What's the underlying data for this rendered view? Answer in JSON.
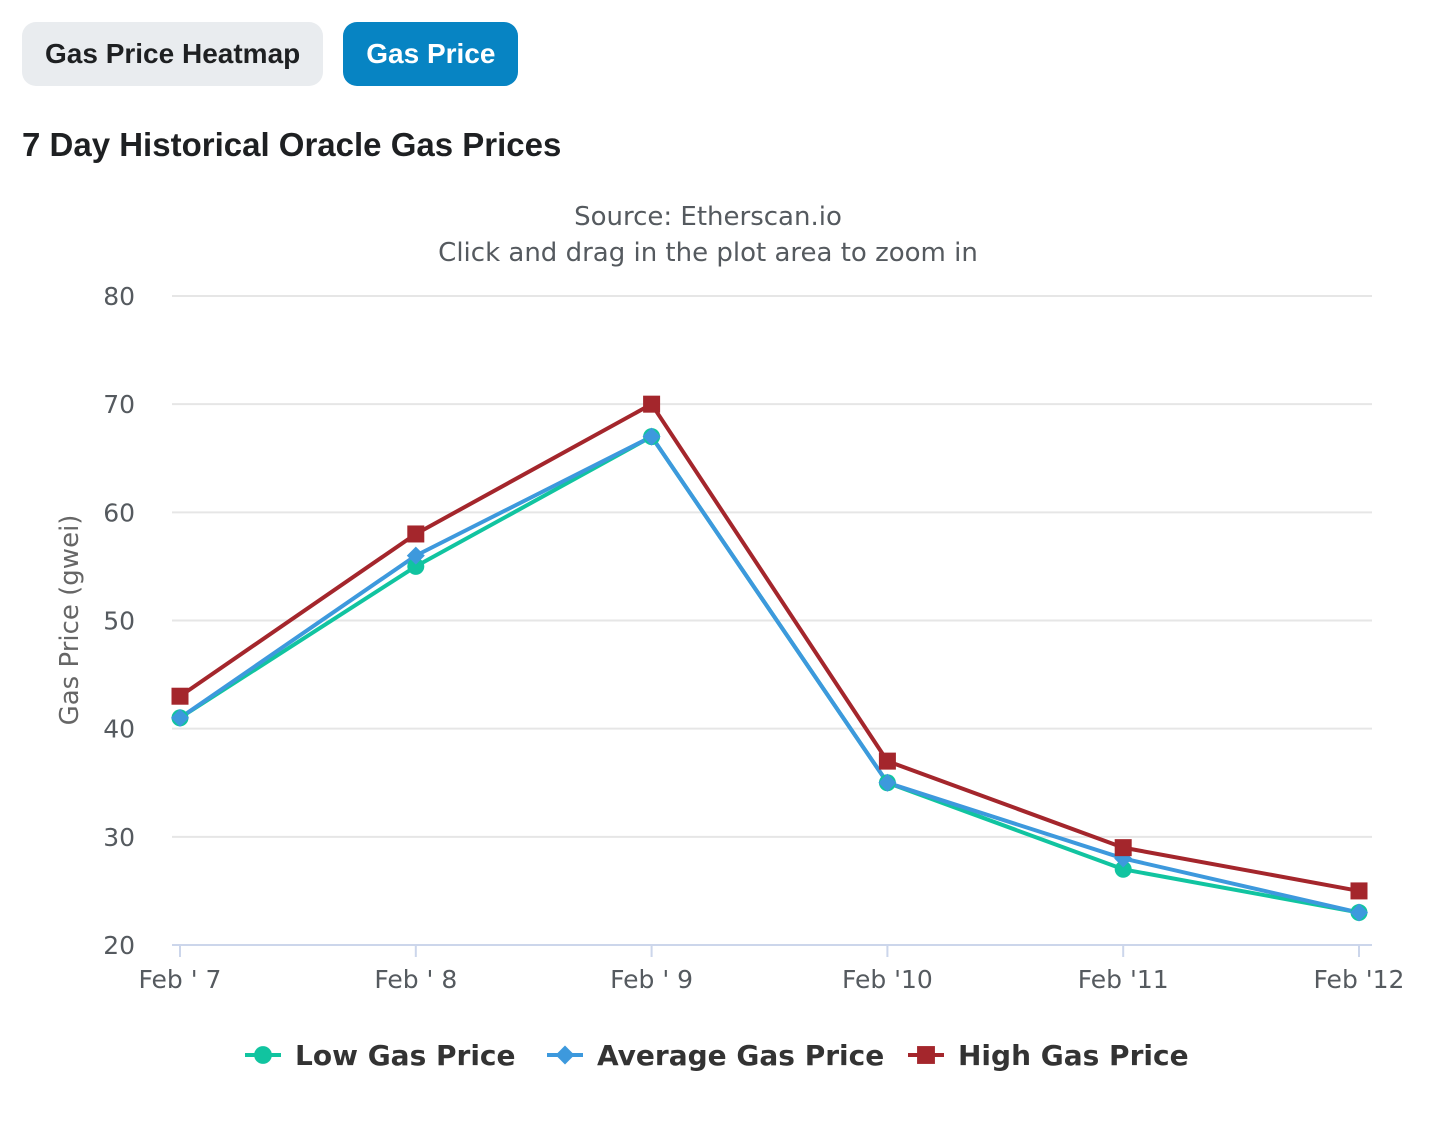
{
  "tabs": [
    {
      "label": "Gas Price Heatmap",
      "active": false
    },
    {
      "label": "Gas Price",
      "active": true
    }
  ],
  "heading": "7 Day Historical Oracle Gas Prices",
  "chart_data": {
    "type": "line",
    "subtitle_lines": [
      "Source: Etherscan.io",
      "Click and drag in the plot area to zoom in"
    ],
    "ylabel": "Gas Price (gwei)",
    "xlabel": "",
    "ylim": [
      20,
      80
    ],
    "yticks": [
      20,
      30,
      40,
      50,
      60,
      70,
      80
    ],
    "categories": [
      "Feb ' 7",
      "Feb ' 8",
      "Feb ' 9",
      "Feb '10",
      "Feb '11",
      "Feb '12"
    ],
    "grid": true,
    "legend_position": "bottom-center",
    "series": [
      {
        "name": "Low Gas Price",
        "color": "#11c4a0",
        "marker": "circle",
        "values": [
          41,
          55,
          67,
          35,
          27,
          23
        ]
      },
      {
        "name": "Average Gas Price",
        "color": "#3d99dd",
        "marker": "diamond",
        "values": [
          41,
          56,
          67,
          35,
          28,
          23
        ]
      },
      {
        "name": "High Gas Price",
        "color": "#a4262c",
        "marker": "square",
        "values": [
          43,
          58,
          70,
          37,
          29,
          25
        ]
      }
    ]
  }
}
